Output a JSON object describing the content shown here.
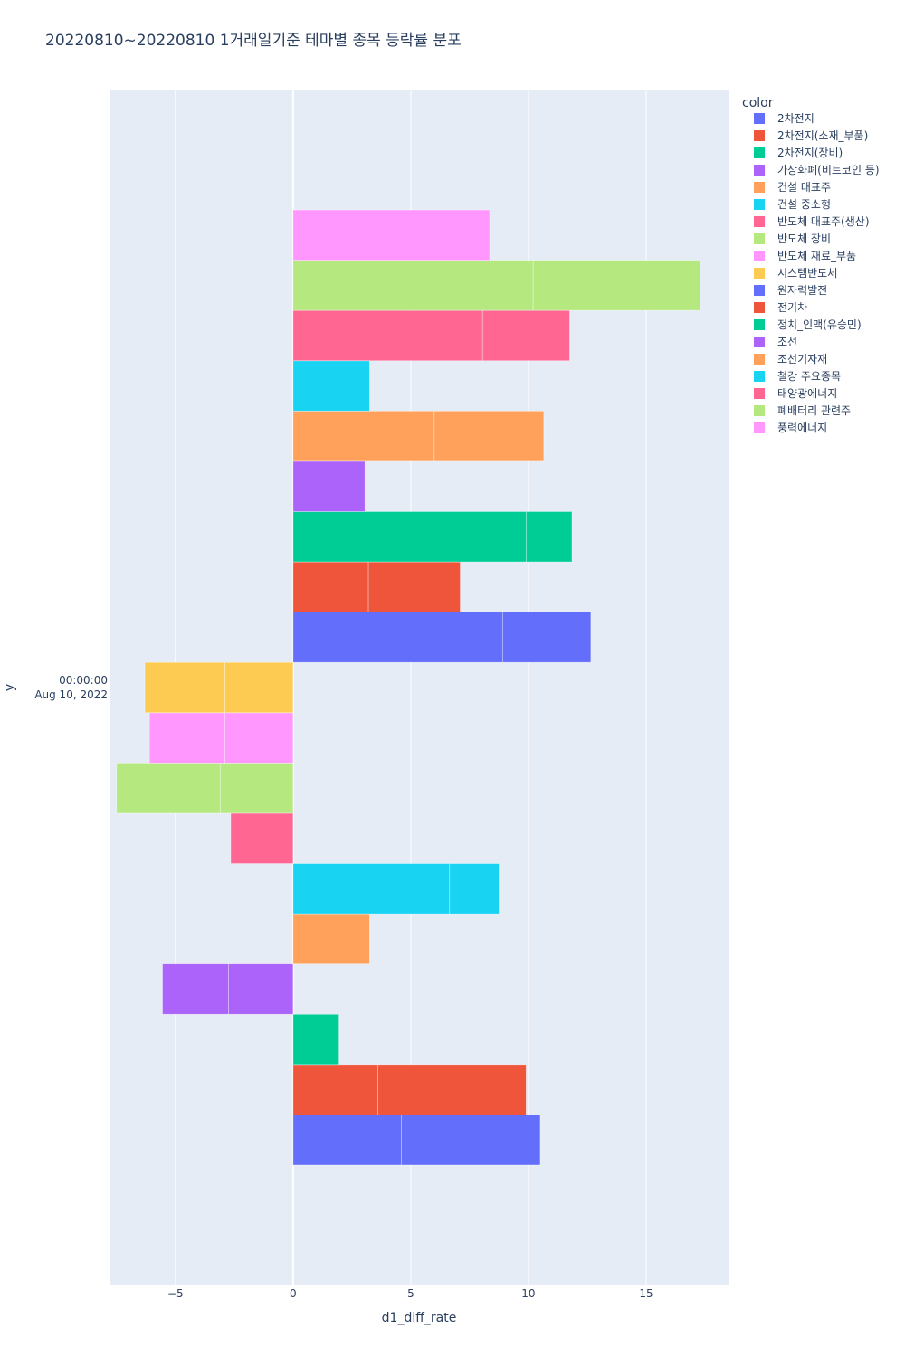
{
  "chart_data": {
    "type": "bar",
    "orientation": "horizontal",
    "barmode": "relative",
    "title": "20220810~20220810 1거래일기준 테마별 종목 등락률 분포",
    "xlabel": "d1_diff_rate",
    "ylabel": "y",
    "y_tick_line1": "00:00:00",
    "y_tick_line2": "Aug 10, 2022",
    "xlim": [
      -7.8,
      18.5
    ],
    "x_ticks": [
      {
        "value": -5,
        "label": "−5"
      },
      {
        "value": 0,
        "label": "0"
      },
      {
        "value": 5,
        "label": "5"
      },
      {
        "value": 10,
        "label": "10"
      },
      {
        "value": 15,
        "label": "15"
      }
    ],
    "grid": true,
    "legend_title": "color",
    "legend_position": "top-right",
    "series": [
      {
        "name": "2차전지",
        "color": "#636efa",
        "values": [
          4.6,
          5.9
        ]
      },
      {
        "name": "2차전지(소재_부품)",
        "color": "#EF553B",
        "values": [
          3.6,
          6.3
        ]
      },
      {
        "name": "2차전지(장비)",
        "color": "#00cc96",
        "values": [
          1.95
        ]
      },
      {
        "name": "가상화폐(비트코인 등)",
        "color": "#ab63fa",
        "values": [
          -2.75,
          -2.8
        ]
      },
      {
        "name": "건설 대표주",
        "color": "#FFA15A",
        "values": [
          3.25
        ]
      },
      {
        "name": "건설 중소형",
        "color": "#19d3f3",
        "values": [
          6.65,
          2.1
        ]
      },
      {
        "name": "반도체 대표주(생산)",
        "color": "#FF6692",
        "values": [
          -2.65
        ]
      },
      {
        "name": "반도체 장비",
        "color": "#B6E880",
        "values": [
          -3.1,
          -4.4
        ]
      },
      {
        "name": "반도체 재료_부품",
        "color": "#FF97FF",
        "values": [
          -2.9,
          -3.2
        ]
      },
      {
        "name": "시스템반도체",
        "color": "#FECB52",
        "values": [
          -2.9,
          -3.4
        ]
      },
      {
        "name": "원자력발전",
        "color": "#636efa",
        "values": [
          8.9,
          3.75
        ]
      },
      {
        "name": "전기차",
        "color": "#EF553B",
        "values": [
          3.2,
          3.9
        ]
      },
      {
        "name": "정치_인맥(유승민)",
        "color": "#00cc96",
        "values": [
          9.9,
          1.95
        ]
      },
      {
        "name": "조선",
        "color": "#ab63fa",
        "values": [
          3.05
        ]
      },
      {
        "name": "조선기자재",
        "color": "#FFA15A",
        "values": [
          6.0,
          4.65
        ]
      },
      {
        "name": "철강 주요종목",
        "color": "#19d3f3",
        "values": [
          3.25
        ]
      },
      {
        "name": "태양광에너지",
        "color": "#FF6692",
        "values": [
          8.05,
          3.7
        ]
      },
      {
        "name": "폐배터리 관련주",
        "color": "#B6E880",
        "values": [
          10.2,
          7.1
        ]
      },
      {
        "name": "풍력에너지",
        "color": "#FF97FF",
        "values": [
          4.75,
          3.6
        ]
      }
    ]
  }
}
